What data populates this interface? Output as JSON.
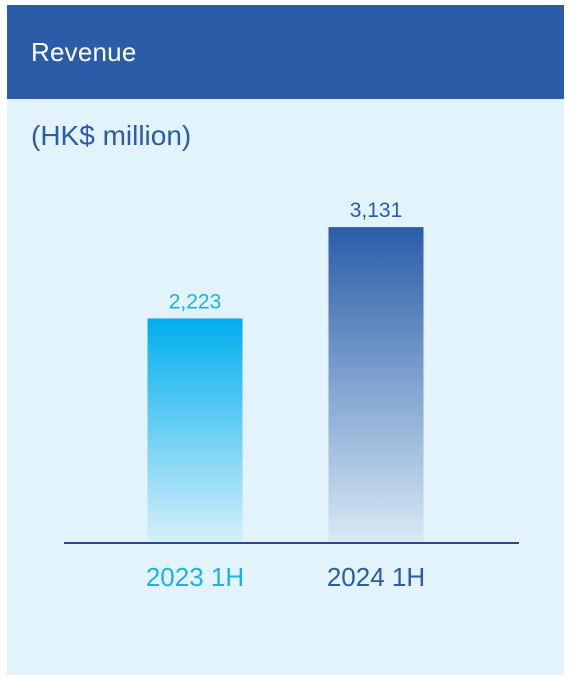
{
  "chart_data": {
    "type": "bar",
    "title": "Revenue",
    "subtitle": "(HK$ million)",
    "categories": [
      "2023 1H",
      "2024 1H"
    ],
    "values": [
      2223,
      3131
    ],
    "value_labels": [
      "2,223",
      "3,131"
    ],
    "ylim": [
      0,
      3500
    ],
    "grid": false,
    "colors": [
      "#00aeef",
      "#2a5ca8"
    ],
    "category_label_colors": [
      "#1bb3e6",
      "#2a5ca8"
    ]
  },
  "colors": {
    "header_background": "#2a5ca8",
    "card_background": "#e2f3fb",
    "axis_line": "#2a4a8a"
  }
}
